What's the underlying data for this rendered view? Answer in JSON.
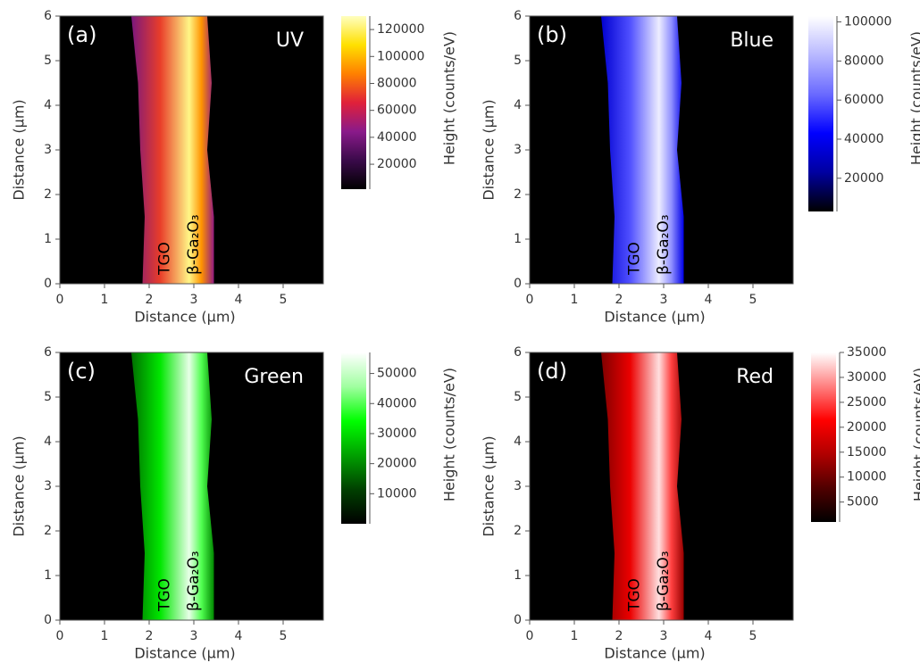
{
  "chart_data": [
    {
      "type": "heatmap",
      "panel": "(a)",
      "channel": "UV",
      "xlabel": "Distance (μm)",
      "ylabel": "Distance (μm)",
      "xlim": [
        0,
        5.9
      ],
      "xticks": [
        0,
        1,
        2,
        3,
        4,
        5
      ],
      "ylim": [
        0,
        6
      ],
      "yticks": [
        0,
        1,
        2,
        3,
        4,
        5,
        6
      ],
      "colorbar_label": "Height (counts/eV)",
      "clim": [
        1500,
        130000
      ],
      "cbticks": [
        20000,
        40000,
        60000,
        80000,
        100000,
        120000
      ],
      "colormap": [
        "#000000",
        "#3a0a4a",
        "#8a1a8a",
        "#e0203a",
        "#ff8000",
        "#ffe000",
        "#ffffc0"
      ],
      "annotations": [
        "TGO",
        "β-Ga₂O₃"
      ],
      "annotation_color": "#000000",
      "label_color": "#ffffff"
    },
    {
      "type": "heatmap",
      "panel": "(b)",
      "channel": "Blue",
      "xlabel": "Distance (μm)",
      "ylabel": "Distance (μm)",
      "xlim": [
        0,
        5.9
      ],
      "xticks": [
        0,
        1,
        2,
        3,
        4,
        5
      ],
      "ylim": [
        0,
        6
      ],
      "yticks": [
        0,
        1,
        2,
        3,
        4,
        5,
        6
      ],
      "colorbar_label": "Height (counts/eV)",
      "clim": [
        3000,
        103000
      ],
      "cbticks": [
        20000,
        40000,
        60000,
        80000,
        100000
      ],
      "colormap": [
        "#000000",
        "#0000a0",
        "#0000ff",
        "#6a6aff",
        "#b8b8ff",
        "#ffffff"
      ],
      "annotations": [
        "TGO",
        "β-Ga₂O₃"
      ],
      "annotation_color": "#000000",
      "label_color": "#ffffff"
    },
    {
      "type": "heatmap",
      "panel": "(c)",
      "channel": "Green",
      "xlabel": "Distance (μm)",
      "ylabel": "Distance (μm)",
      "xlim": [
        0,
        5.9
      ],
      "xticks": [
        0,
        1,
        2,
        3,
        4,
        5
      ],
      "ylim": [
        0,
        6
      ],
      "yticks": [
        0,
        1,
        2,
        3,
        4,
        5,
        6
      ],
      "colorbar_label": "Height (counts/eV)",
      "clim": [
        0,
        57000
      ],
      "cbticks": [
        10000,
        20000,
        30000,
        40000,
        50000
      ],
      "colormap": [
        "#000000",
        "#004000",
        "#00a000",
        "#00ff00",
        "#a0ffa0",
        "#ffffff"
      ],
      "annotations": [
        "TGO",
        "β-Ga₂O₃"
      ],
      "annotation_color": "#000000",
      "label_color": "#ffffff"
    },
    {
      "type": "heatmap",
      "panel": "(d)",
      "channel": "Red",
      "xlabel": "Distance (μm)",
      "ylabel": "Distance (μm)",
      "xlim": [
        0,
        5.9
      ],
      "xticks": [
        0,
        1,
        2,
        3,
        4,
        5
      ],
      "ylim": [
        0,
        6
      ],
      "yticks": [
        0,
        1,
        2,
        3,
        4,
        5,
        6
      ],
      "colorbar_label": "Height (counts/eV)",
      "clim": [
        1000,
        35000
      ],
      "cbticks": [
        5000,
        10000,
        15000,
        20000,
        25000,
        30000,
        35000
      ],
      "colormap": [
        "#000000",
        "#500000",
        "#b00000",
        "#ff0000",
        "#ff8080",
        "#ffffff"
      ],
      "annotations": [
        "TGO",
        "β-Ga₂O₃"
      ],
      "annotation_color": "#000000",
      "label_color": "#ffffff"
    }
  ]
}
